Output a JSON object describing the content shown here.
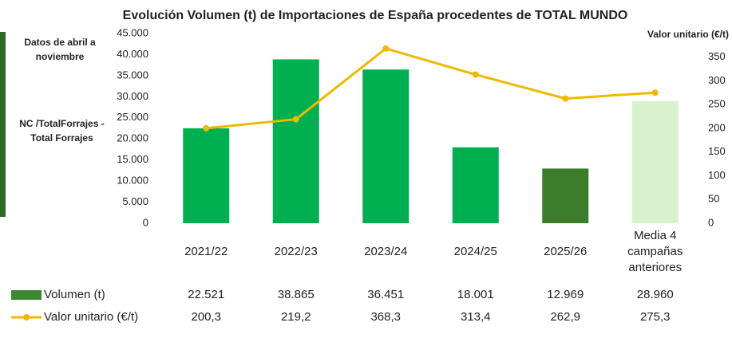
{
  "chart_data": {
    "type": "bar-line",
    "title": "Evolución Volumen (t) de Importaciones de España procedentes de TOTAL MUNDO",
    "annotations": [
      "Datos de abril a noviembre",
      "NC /TotalForrajes - Total Forrajes"
    ],
    "y2_label": "Valor unitario (€/t)",
    "categories": [
      "2021/22",
      "2022/23",
      "2023/24",
      "2024/25",
      "2025/26",
      "Media 4 campañas anteriores"
    ],
    "series": [
      {
        "name": "Volumen (t)",
        "type": "bar",
        "color": "#3b8a2f",
        "colors": [
          "#00b050",
          "#00b050",
          "#00b050",
          "#00b050",
          "#3b7d2b",
          "#d8f2d0"
        ],
        "values": [
          22521,
          38865,
          36451,
          18001,
          12969,
          28960
        ],
        "value_labels": [
          "22.521",
          "38.865",
          "36.451",
          "18.001",
          "12.969",
          "28.960"
        ]
      },
      {
        "name": "Valor unitario (€/t)",
        "type": "line",
        "axis": "y2",
        "color": "#f0b800",
        "values": [
          200.3,
          219.2,
          368.3,
          313.4,
          262.9,
          275.3
        ],
        "value_labels": [
          "200,3",
          "219,2",
          "368,3",
          "313,4",
          "262,9",
          "275,3"
        ]
      }
    ],
    "ylim": [
      0,
      45000
    ],
    "yticks": [
      0,
      {
        "value": 5000,
        "label": "5.000"
      },
      {
        "value": 10000,
        "label": "10.000"
      },
      {
        "value": 15000,
        "label": "15.000"
      },
      {
        "value": 20000,
        "label": "20.000"
      },
      {
        "value": 25000,
        "label": "25.000"
      },
      {
        "value": 30000,
        "label": "30.000"
      },
      {
        "value": 35000,
        "label": "35.000"
      },
      {
        "value": 40000,
        "label": "40.000"
      },
      {
        "value": 45000,
        "label": "45.000"
      }
    ],
    "y2lim": [
      0,
      400
    ],
    "y2ticks": [
      0,
      50,
      100,
      150,
      200,
      250,
      300,
      350
    ],
    "grid": false
  }
}
